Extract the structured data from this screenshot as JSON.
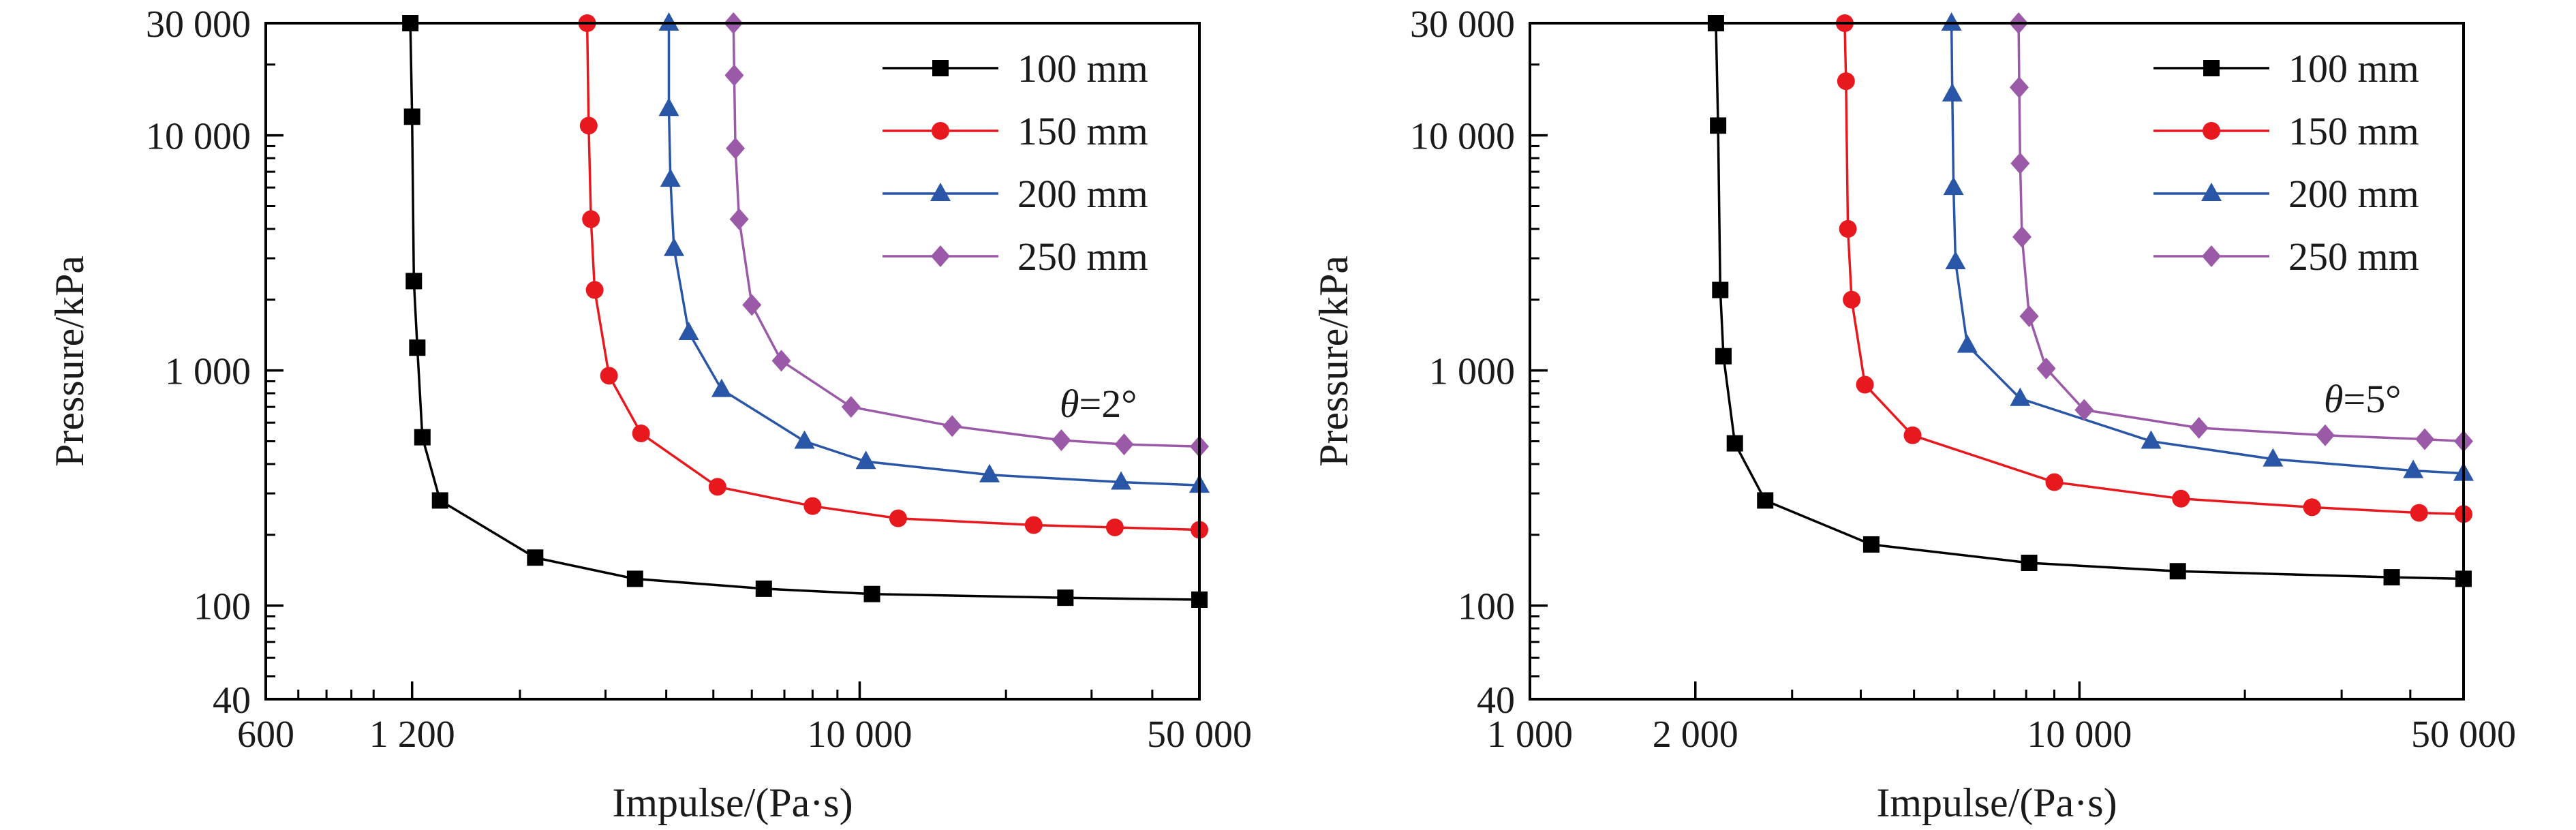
{
  "chart_data": [
    {
      "type": "line",
      "x_scale": "log",
      "y_scale": "log",
      "xlim": [
        600,
        50000
      ],
      "ylim": [
        40,
        30000
      ],
      "x_ticks": [
        {
          "value": 600,
          "label": "600"
        },
        {
          "value": 1200,
          "label": "1 200"
        },
        {
          "value": 10000,
          "label": "10 000"
        },
        {
          "value": 50000,
          "label": "50 000"
        }
      ],
      "y_ticks": [
        {
          "value": 40,
          "label": "40"
        },
        {
          "value": 100,
          "label": "100"
        },
        {
          "value": 1000,
          "label": "1 000"
        },
        {
          "value": 10000,
          "label": "10 000"
        },
        {
          "value": 30000,
          "label": "30 000"
        }
      ],
      "xlabel": "Impulse/(Pa·s)",
      "ylabel": "Pressure/kPa",
      "annotation": {
        "symbol": "θ",
        "text": "=2°"
      },
      "legend_position": "top-right",
      "grid": false,
      "series": [
        {
          "name": "100 mm",
          "color": "#000000",
          "marker": "square",
          "x": [
            1190,
            1200,
            1210,
            1230,
            1260,
            1370,
            2150,
            3450,
            6350,
            10600,
            26500,
            50000
          ],
          "y": [
            30000,
            12000,
            2400,
            1250,
            520,
            280,
            160,
            130,
            118,
            112,
            108,
            106
          ]
        },
        {
          "name": "150 mm",
          "color": "#e8191e",
          "marker": "circle",
          "x": [
            2750,
            2770,
            2800,
            2850,
            3050,
            3550,
            5100,
            8000,
            12000,
            22800,
            33500,
            50000
          ],
          "y": [
            30000,
            11000,
            4400,
            2200,
            950,
            540,
            320,
            265,
            235,
            220,
            215,
            210
          ]
        },
        {
          "name": "200 mm",
          "color": "#2a56a8",
          "marker": "triangle",
          "x": [
            4050,
            4050,
            4080,
            4150,
            4450,
            5200,
            7700,
            10300,
            18500,
            34500,
            50000
          ],
          "y": [
            30000,
            13000,
            6500,
            3300,
            1450,
            830,
            500,
            410,
            360,
            335,
            325
          ]
        },
        {
          "name": "250 mm",
          "color": "#9b5aa8",
          "marker": "diamond",
          "x": [
            5500,
            5520,
            5550,
            5650,
            6000,
            6900,
            9600,
            15500,
            26000,
            35000,
            50000
          ],
          "y": [
            30000,
            18000,
            8800,
            4400,
            1900,
            1100,
            700,
            580,
            505,
            485,
            475
          ]
        }
      ]
    },
    {
      "type": "line",
      "x_scale": "log",
      "y_scale": "log",
      "xlim": [
        1000,
        50000
      ],
      "ylim": [
        40,
        30000
      ],
      "x_ticks": [
        {
          "value": 1000,
          "label": "1 000"
        },
        {
          "value": 2000,
          "label": "2 000"
        },
        {
          "value": 10000,
          "label": "10 000"
        },
        {
          "value": 50000,
          "label": "50 000"
        }
      ],
      "y_ticks": [
        {
          "value": 40,
          "label": "40"
        },
        {
          "value": 100,
          "label": "100"
        },
        {
          "value": 1000,
          "label": "1 000"
        },
        {
          "value": 10000,
          "label": "10 000"
        },
        {
          "value": 30000,
          "label": "30 000"
        }
      ],
      "xlabel": "Impulse/(Pa·s)",
      "ylabel": "Pressure/kPa",
      "annotation": {
        "symbol": "θ",
        "text": "=5°"
      },
      "legend_position": "top-right",
      "grid": false,
      "series": [
        {
          "name": "100 mm",
          "color": "#000000",
          "marker": "square",
          "x": [
            2180,
            2200,
            2220,
            2250,
            2360,
            2680,
            4180,
            8100,
            15100,
            37000,
            50000
          ],
          "y": [
            30000,
            11000,
            2200,
            1150,
            490,
            280,
            182,
            152,
            140,
            132,
            130
          ]
        },
        {
          "name": "150 mm",
          "color": "#e8191e",
          "marker": "circle",
          "x": [
            3740,
            3760,
            3790,
            3850,
            4070,
            4970,
            9000,
            15300,
            26500,
            41500,
            50000
          ],
          "y": [
            30000,
            17000,
            4000,
            2000,
            870,
            530,
            335,
            285,
            262,
            248,
            245
          ]
        },
        {
          "name": "200 mm",
          "color": "#2a56a8",
          "marker": "triangle",
          "x": [
            5850,
            5870,
            5900,
            5950,
            6250,
            7800,
            13500,
            22500,
            40500,
            50000
          ],
          "y": [
            30000,
            15000,
            6000,
            2900,
            1280,
            760,
            500,
            420,
            375,
            365
          ]
        },
        {
          "name": "250 mm",
          "color": "#9b5aa8",
          "marker": "diamond",
          "x": [
            7750,
            7770,
            7800,
            7860,
            8100,
            8700,
            10200,
            16500,
            28000,
            42500,
            50000
          ],
          "y": [
            30000,
            16000,
            7600,
            3700,
            1700,
            1020,
            680,
            570,
            530,
            510,
            500
          ]
        }
      ]
    }
  ]
}
